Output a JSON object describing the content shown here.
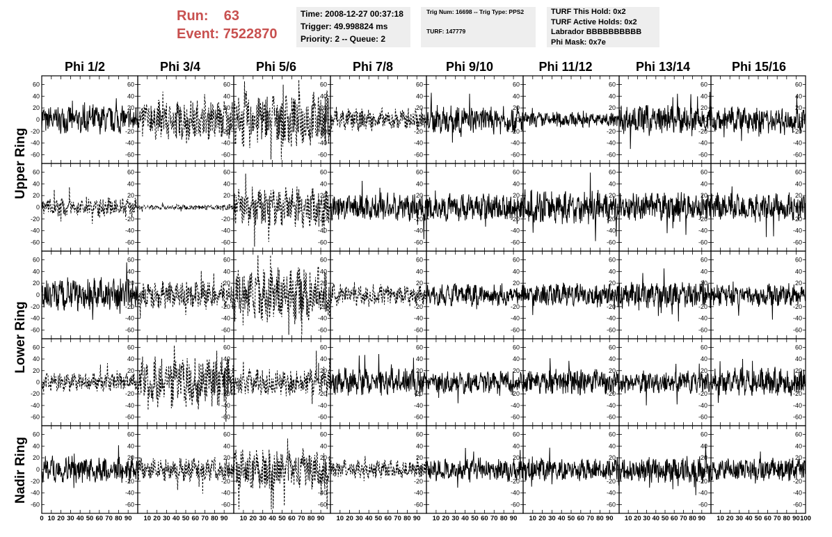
{
  "run_info": {
    "run_label": "Run:",
    "run_value": "63",
    "event_label": "Event:",
    "event_value": "7522870"
  },
  "time_box": {
    "time": "Time: 2008-12-27 00:37:18",
    "trigger": "Trigger: 49.998824 ms",
    "priority": "Priority: 2 -- Queue: 2"
  },
  "trig_box": {
    "trig": "Trig Num: 16698 -- Trig Type: PPS2",
    "turf": "TURF: 147779"
  },
  "turf_box": {
    "this_hold": "TURF This Hold: 0x2",
    "active_holds": "TURF Active Holds: 0x2",
    "labrador": "Labrador BBBBBBBBBB",
    "phi_mask": "Phi Mask: 0x7e"
  },
  "columns": [
    "Phi 1/2",
    "Phi 3/4",
    "Phi 5/6",
    "Phi 7/8",
    "Phi 9/10",
    "Phi 11/12",
    "Phi 13/14",
    "Phi 15/16"
  ],
  "rings": [
    "Upper Ring",
    "Lower Ring",
    "Nadir Ring"
  ],
  "chart_data": {
    "type": "line",
    "grid": "5x8 waveform panels",
    "xlim": [
      0,
      100
    ],
    "ylim": [
      -70,
      70
    ],
    "y_ticks": [
      -60,
      -40,
      -20,
      0,
      20,
      40,
      60
    ],
    "x_tick_labels": [
      "0",
      "10",
      "20",
      "30",
      "40",
      "50",
      "60",
      "70",
      "80",
      "90",
      "100"
    ],
    "row_ring": [
      "Upper Ring",
      "Upper Ring",
      "Lower Ring",
      "Lower Ring",
      "Nadir Ring"
    ],
    "panels_amplitude": [
      [
        15,
        22,
        30,
        12,
        15,
        8,
        15,
        14
      ],
      [
        10,
        3,
        22,
        15,
        15,
        18,
        15,
        15
      ],
      [
        18,
        15,
        30,
        12,
        12,
        12,
        14,
        12
      ],
      [
        10,
        28,
        15,
        15,
        12,
        14,
        12,
        15
      ],
      [
        14,
        13,
        22,
        10,
        12,
        12,
        14,
        12
      ]
    ],
    "panels_dashed": [
      [
        false,
        true,
        true,
        true,
        false,
        false,
        false,
        false
      ],
      [
        true,
        true,
        true,
        false,
        false,
        false,
        false,
        false
      ],
      [
        false,
        true,
        true,
        true,
        false,
        false,
        false,
        false
      ],
      [
        true,
        true,
        true,
        false,
        false,
        false,
        false,
        false
      ],
      [
        false,
        true,
        true,
        true,
        false,
        false,
        false,
        false
      ]
    ],
    "line_color": "#000000",
    "title_color": "#c8504f"
  }
}
